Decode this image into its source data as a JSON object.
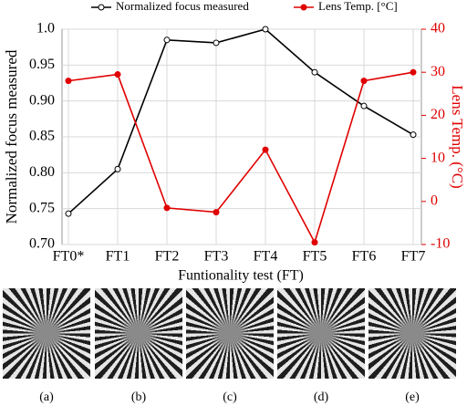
{
  "chart_data": {
    "type": "line",
    "x_label": "Funtionality test (FT)",
    "y_label": "Normalized focus measured",
    "y2_label": "Lens Temp. (°C)",
    "categories": [
      "FT0*",
      "FT1",
      "FT2",
      "FT3",
      "FT4",
      "FT5",
      "FT6",
      "FT7"
    ],
    "series": [
      {
        "name": "Normalized focus measured",
        "color": "#000000",
        "marker": "open-circle",
        "values": [
          0.743,
          0.805,
          0.985,
          0.981,
          1.0,
          0.94,
          0.893,
          0.853
        ]
      },
      {
        "name": "Lens Temp. [°C]",
        "color": "#e00000",
        "marker": "filled-circle",
        "axis": "y2",
        "values": [
          28,
          29.5,
          -1.5,
          -2.5,
          12,
          -9.5,
          28,
          30
        ]
      }
    ],
    "ylim": [
      0.7,
      1.0
    ],
    "yticks": [
      {
        "value": 0.7,
        "label": "0.70"
      },
      0.75,
      {
        "value": 0.8,
        "label": "0.80"
      },
      0.85,
      {
        "value": 0.9,
        "label": "0.90"
      },
      0.95,
      {
        "value": 1.0,
        "label": "1.0"
      }
    ],
    "y2lim": [
      -10,
      40
    ],
    "y2ticks": [
      -10,
      0,
      10,
      20,
      30,
      40
    ],
    "grid": true,
    "legend": "top"
  },
  "panel_labels": [
    "(a)",
    "(b)",
    "(c)",
    "(d)",
    "(e)"
  ]
}
